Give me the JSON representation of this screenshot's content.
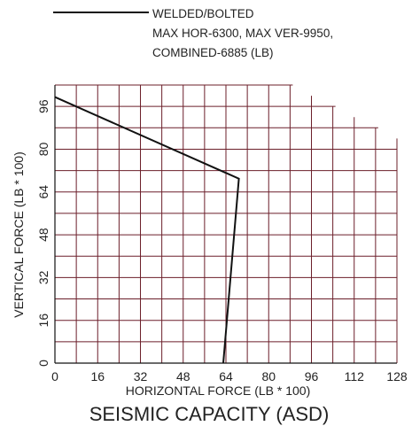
{
  "chart_data": {
    "type": "line",
    "title": "SEISMIC CAPACITY (ASD)",
    "xlabel": "HORIZONTAL FORCE (LB * 100)",
    "ylabel": "VERTICAL FORCE (LB * 100)",
    "xlim": [
      0,
      128
    ],
    "ylim": [
      0,
      104
    ],
    "x_ticks": [
      "0",
      "16",
      "32",
      "48",
      "64",
      "80",
      "96",
      "112",
      "128"
    ],
    "y_ticks": [
      "0",
      "16",
      "32",
      "48",
      "64",
      "80",
      "96"
    ],
    "grid": true,
    "grid_color": "#6b1f2a",
    "legend_position": "top",
    "legend": {
      "line1": "WELDED/BOLTED",
      "line2": "MAX HOR-6300, MAX VER-9950,",
      "line3": "COMBINED-6885 (LB)"
    },
    "series": [
      {
        "name": "WELDED/BOLTED",
        "points": [
          [
            0,
            99.5
          ],
          [
            68.85,
            69
          ],
          [
            63,
            0
          ]
        ]
      }
    ],
    "capacity_envelope_top": [
      104,
      104,
      104,
      104,
      104,
      104,
      104,
      104,
      104,
      104,
      104,
      104,
      104,
      104,
      104,
      104,
      104,
      104,
      104,
      104,
      104,
      104,
      104,
      104,
      104,
      104,
      104,
      104,
      104,
      104,
      104,
      104,
      104,
      104,
      104,
      104,
      104,
      104,
      104,
      104,
      104,
      104,
      104,
      104,
      104,
      104,
      104,
      104,
      104,
      104,
      104,
      104,
      104,
      104,
      104,
      104,
      104,
      104,
      104,
      104,
      104,
      104,
      104,
      104,
      104,
      104,
      104,
      104,
      104,
      104,
      104,
      104,
      104,
      104,
      104,
      104,
      104,
      104,
      104,
      104,
      104,
      104,
      104,
      104,
      104,
      104,
      104,
      104,
      104,
      104,
      100,
      100,
      100,
      100,
      100,
      100,
      100,
      100,
      96,
      96,
      96,
      96,
      96,
      96,
      96,
      96,
      92,
      92,
      92,
      92,
      92,
      92,
      92,
      92,
      88,
      88,
      88,
      88,
      88,
      88,
      88,
      88,
      84,
      84,
      84,
      84,
      84,
      84,
      84,
      84,
      76,
      76,
      76,
      76,
      76,
      76,
      76,
      76,
      72,
      72,
      72,
      72,
      72,
      72,
      72,
      72,
      64,
      64,
      64,
      64,
      64
    ]
  }
}
